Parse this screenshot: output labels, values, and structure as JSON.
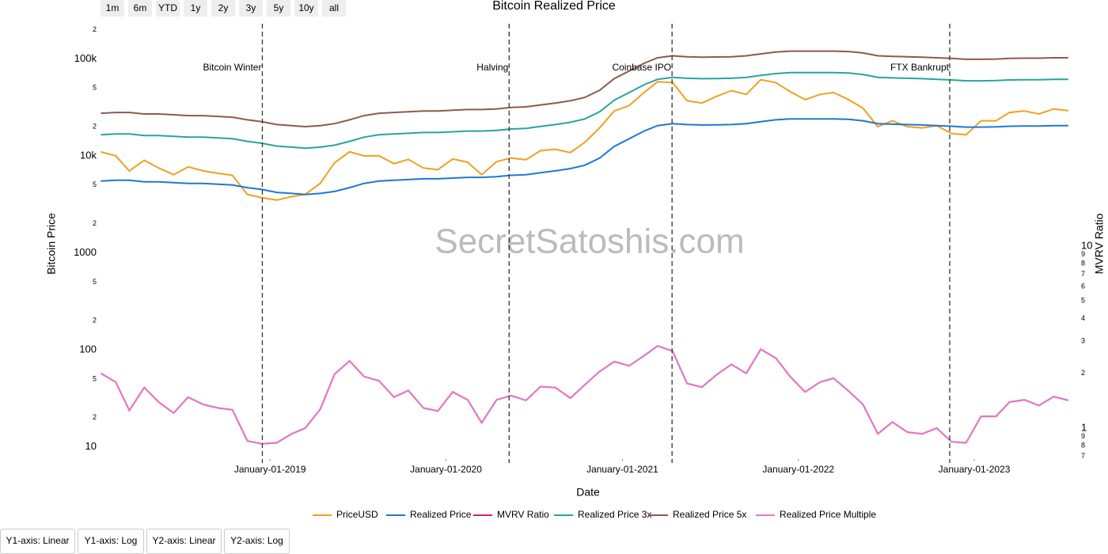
{
  "range_buttons": [
    "1m",
    "6m",
    "YTD",
    "1y",
    "2y",
    "3y",
    "5y",
    "10y",
    "all"
  ],
  "chart_data": {
    "type": "line",
    "title": "Bitcoin Realized Price",
    "x_label": "Date",
    "y_label": "Bitcoin Price",
    "y2_label": "MVRV Ratio",
    "watermark": "SecretSatoshis.com",
    "x": [
      "2018-01-15",
      "2018-02-15",
      "2018-03-15",
      "2018-04-15",
      "2018-05-15",
      "2018-06-15",
      "2018-07-15",
      "2018-08-15",
      "2018-09-15",
      "2018-10-15",
      "2018-11-15",
      "2018-12-15",
      "2019-01-15",
      "2019-02-15",
      "2019-03-15",
      "2019-04-15",
      "2019-05-15",
      "2019-06-15",
      "2019-07-15",
      "2019-08-15",
      "2019-09-15",
      "2019-10-15",
      "2019-11-15",
      "2019-12-15",
      "2020-01-15",
      "2020-02-15",
      "2020-03-15",
      "2020-04-15",
      "2020-05-15",
      "2020-06-15",
      "2020-07-15",
      "2020-08-15",
      "2020-09-15",
      "2020-10-15",
      "2020-11-15",
      "2020-12-15",
      "2021-01-15",
      "2021-02-15",
      "2021-03-15",
      "2021-04-15",
      "2021-05-15",
      "2021-06-15",
      "2021-07-15",
      "2021-08-15",
      "2021-09-15",
      "2021-10-15",
      "2021-11-15",
      "2021-12-15",
      "2022-01-15",
      "2022-02-15",
      "2022-03-15",
      "2022-04-15",
      "2022-05-15",
      "2022-06-15",
      "2022-07-15",
      "2022-08-15",
      "2022-09-15",
      "2022-10-15",
      "2022-11-15",
      "2022-12-15",
      "2023-01-15",
      "2023-02-15",
      "2023-03-15",
      "2023-04-15",
      "2023-05-15",
      "2023-06-15",
      "2023-07-15"
    ],
    "xlim": [
      "2018-01-11",
      "2023-08-04"
    ],
    "xticks": [
      {
        "value": "2019-01-01",
        "label": "January-01-2019"
      },
      {
        "value": "2020-01-01",
        "label": "January-01-2020"
      },
      {
        "value": "2021-01-01",
        "label": "January-01-2021"
      },
      {
        "value": "2022-01-01",
        "label": "January-01-2022"
      },
      {
        "value": "2023-01-01",
        "label": "January-01-2023"
      }
    ],
    "ylim": [
      7.5,
      230000
    ],
    "y_log": true,
    "yticks": [
      10,
      {
        "value": 20,
        "label": "2"
      },
      {
        "value": 50,
        "label": "5"
      },
      100,
      {
        "value": 200,
        "label": "2"
      },
      {
        "value": 500,
        "label": "5"
      },
      1000,
      {
        "value": 2000,
        "label": "2"
      },
      {
        "value": 5000,
        "label": "5"
      },
      {
        "value": 10000,
        "label": "10k"
      },
      {
        "value": 20000,
        "label": "2"
      },
      {
        "value": 50000,
        "label": "5"
      },
      {
        "value": 100000,
        "label": "100k"
      },
      {
        "value": 200000,
        "label": "2"
      }
    ],
    "y2lim": [
      0.676,
      167
    ],
    "y2_log": true,
    "y2ticks": [
      {
        "value": 0.7,
        "label": "7"
      },
      {
        "value": 0.8,
        "label": "8"
      },
      {
        "value": 0.9,
        "label": "9"
      },
      1,
      2,
      3,
      4,
      5,
      6,
      7,
      8,
      9,
      10
    ],
    "series": [
      {
        "name": "PriceUSD",
        "color": "#f0a020",
        "values": [
          11000,
          10000,
          7000,
          9000,
          7500,
          6400,
          7700,
          7000,
          6600,
          6300,
          4000,
          3700,
          3500,
          3800,
          4000,
          5200,
          8500,
          11000,
          10000,
          10000,
          8300,
          9200,
          7500,
          7200,
          9300,
          8600,
          6400,
          8700,
          9500,
          9100,
          11300,
          11700,
          10800,
          13800,
          19500,
          29000,
          33000,
          45000,
          58000,
          57000,
          37000,
          35000,
          41000,
          47000,
          43000,
          61000,
          57000,
          46000,
          38000,
          43000,
          45000,
          38000,
          31000,
          20000,
          23000,
          20000,
          19400,
          20500,
          17000,
          16500,
          23000,
          23000,
          28000,
          29000,
          27000,
          30500,
          29200
        ]
      },
      {
        "name": "Realized Price",
        "color": "#1f78d1",
        "values": [
          5500,
          5600,
          5600,
          5400,
          5400,
          5300,
          5200,
          5200,
          5100,
          5000,
          4700,
          4500,
          4200,
          4100,
          4000,
          4100,
          4300,
          4700,
          5200,
          5500,
          5600,
          5700,
          5800,
          5800,
          5900,
          6000,
          6000,
          6100,
          6300,
          6400,
          6700,
          7000,
          7400,
          8000,
          9500,
          12500,
          15000,
          18000,
          20500,
          21500,
          21000,
          20800,
          20900,
          21000,
          21500,
          22500,
          23500,
          24000,
          24000,
          24000,
          24000,
          23800,
          23000,
          21500,
          21200,
          21000,
          20800,
          20500,
          20200,
          19800,
          19800,
          19900,
          20200,
          20300,
          20300,
          20500,
          20500
        ]
      },
      {
        "name": "MVRV Ratio",
        "color": "#d62070",
        "axis": "y2",
        "values": [
          2.0,
          1.79,
          1.25,
          1.67,
          1.39,
          1.21,
          1.48,
          1.35,
          1.29,
          1.26,
          0.85,
          0.82,
          0.83,
          0.93,
          1.0,
          1.27,
          1.98,
          2.34,
          1.92,
          1.82,
          1.48,
          1.61,
          1.29,
          1.24,
          1.58,
          1.43,
          1.07,
          1.43,
          1.51,
          1.42,
          1.69,
          1.67,
          1.46,
          1.73,
          2.05,
          2.32,
          2.2,
          2.5,
          2.83,
          2.65,
          1.76,
          1.68,
          1.96,
          2.24,
          2.0,
          2.71,
          2.43,
          1.92,
          1.58,
          1.79,
          1.88,
          1.6,
          1.35,
          0.93,
          1.08,
          0.95,
          0.93,
          1.0,
          0.84,
          0.83,
          1.16,
          1.16,
          1.39,
          1.43,
          1.33,
          1.49,
          1.42
        ]
      },
      {
        "name": "Realized Price 3x",
        "color": "#26a69a",
        "values": [
          16500,
          16800,
          16800,
          16200,
          16200,
          15900,
          15600,
          15600,
          15300,
          15000,
          14100,
          13500,
          12600,
          12300,
          12000,
          12300,
          12900,
          14100,
          15600,
          16500,
          16800,
          17100,
          17400,
          17400,
          17700,
          18000,
          18000,
          18300,
          18900,
          19200,
          20100,
          21000,
          22200,
          24000,
          28500,
          37500,
          45000,
          54000,
          61500,
          64500,
          63000,
          62400,
          62700,
          63000,
          64500,
          67500,
          70500,
          72000,
          72000,
          72000,
          72000,
          71400,
          69000,
          64500,
          63600,
          63000,
          62400,
          61500,
          60600,
          59400,
          59400,
          59700,
          60600,
          60900,
          60900,
          61500,
          61500
        ]
      },
      {
        "name": "Realized Price 5x",
        "color": "#8d5a4c",
        "values": [
          27500,
          28000,
          28000,
          27000,
          27000,
          26500,
          26000,
          26000,
          25500,
          25000,
          23500,
          22500,
          21000,
          20500,
          20000,
          20500,
          21500,
          23500,
          26000,
          27500,
          28000,
          28500,
          29000,
          29000,
          29500,
          30000,
          30000,
          30500,
          31500,
          32000,
          33500,
          35000,
          37000,
          40000,
          47500,
          62500,
          75000,
          90000,
          102500,
          107500,
          105000,
          104000,
          104500,
          105000,
          107500,
          112500,
          117500,
          120000,
          120000,
          120000,
          120000,
          119000,
          115000,
          107500,
          106000,
          105000,
          104000,
          102500,
          101000,
          99000,
          99000,
          99500,
          101000,
          101500,
          101500,
          102500,
          102500
        ]
      },
      {
        "name": "Realized Price Multiple",
        "color": "#e27ac8",
        "axis": "y2",
        "values": [
          2.0,
          1.79,
          1.25,
          1.67,
          1.39,
          1.21,
          1.48,
          1.35,
          1.29,
          1.26,
          0.85,
          0.82,
          0.83,
          0.93,
          1.0,
          1.27,
          1.98,
          2.34,
          1.92,
          1.82,
          1.48,
          1.61,
          1.29,
          1.24,
          1.58,
          1.43,
          1.07,
          1.43,
          1.51,
          1.42,
          1.69,
          1.67,
          1.46,
          1.73,
          2.05,
          2.32,
          2.2,
          2.5,
          2.83,
          2.65,
          1.76,
          1.68,
          1.96,
          2.24,
          2.0,
          2.71,
          2.43,
          1.92,
          1.58,
          1.79,
          1.88,
          1.6,
          1.35,
          0.93,
          1.08,
          0.95,
          0.93,
          1.0,
          0.84,
          0.83,
          1.16,
          1.16,
          1.39,
          1.43,
          1.33,
          1.49,
          1.42
        ]
      }
    ],
    "annotations": [
      {
        "x": "2018-12-16",
        "label": "Bitcoin Winter"
      },
      {
        "x": "2020-05-11",
        "label": "Halving"
      },
      {
        "x": "2021-04-14",
        "label": "Coinbase IPO"
      },
      {
        "x": "2022-11-11",
        "label": "FTX Bankrupt"
      }
    ],
    "legend": "bottom"
  },
  "axis_buttons": [
    "Y1-axis: Linear",
    "Y1-axis: Log",
    "Y2-axis: Linear",
    "Y2-axis: Log"
  ]
}
